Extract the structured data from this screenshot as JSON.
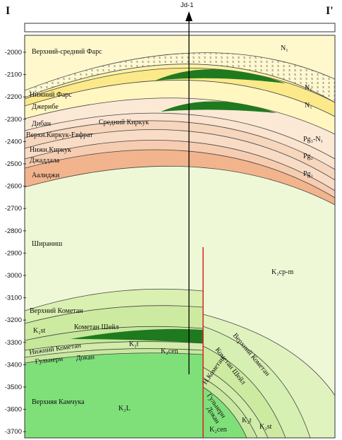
{
  "header": {
    "left": "I",
    "right": "I'",
    "well": "Jd-1"
  },
  "depth_labels": [
    "-2000",
    "-2100",
    "-2200",
    "-2300",
    "-2400",
    "-2500",
    "-2600",
    "-2700",
    "-2800",
    "-2900",
    "-3000",
    "-3100",
    "-3200",
    "-3300",
    "-3400",
    "-3500",
    "-3600",
    "-3700"
  ],
  "formations": [
    "Верхний-средний Фарс",
    "Нижний Фарс",
    "Джерибе",
    "Дибан",
    "Средний Киркук",
    "Верхн.Киркук-Евфрат",
    "Нижн.Киркук",
    "Джаддала",
    "Аалиджи",
    "Шираниш",
    "Верхний Кометан",
    "Кометан Шейл",
    "Нижний Кометан",
    "Гульнери",
    "Докан",
    "Верхняя Камчука",
    "Верхний Кометан",
    "Кометан Шейл",
    "Н.Кометан",
    "Гульнери",
    "Докан"
  ],
  "ages": [
    "N₁",
    "N₁",
    "N₁",
    "Pg₃-N₁",
    "Pg₂",
    "Pg₁",
    "K₂cp-m",
    "K₂st",
    "K₂t",
    "K₂cen",
    "K₂L",
    "K₂cen",
    "K₂t",
    "K₂st"
  ]
}
